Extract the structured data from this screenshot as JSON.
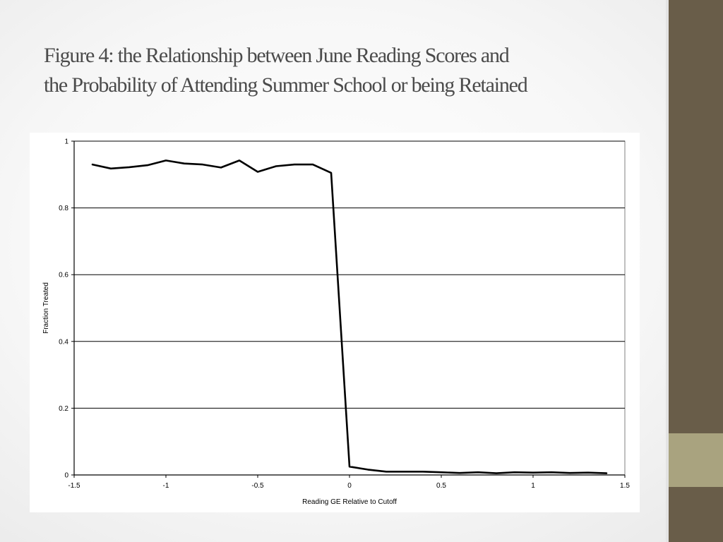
{
  "slide": {
    "title_line1": "Figure 4: the Relationship between June Reading Scores and",
    "title_line2": "the Probability of Attending Summer School or being Retained",
    "colors": {
      "side_band": "#695d49",
      "side_accent": "#a9a37f",
      "title_text": "#4b4b4b"
    }
  },
  "chart_data": {
    "type": "line",
    "title": "",
    "xlabel": "Reading GE Relative to Cutoff",
    "ylabel": "Fraction Treated",
    "xlim": [
      -1.5,
      1.5
    ],
    "ylim": [
      0,
      1
    ],
    "xticks": [
      -1.5,
      -1,
      -0.5,
      0,
      0.5,
      1,
      1.5
    ],
    "xtick_labels": [
      "-1.5",
      "-1",
      "-0.5",
      "0",
      "0.5",
      "1",
      "1.5"
    ],
    "yticks": [
      0,
      0.2,
      0.4,
      0.6,
      0.8,
      1
    ],
    "ytick_labels": [
      "0",
      "0.2",
      "0.4",
      "0.6",
      "0.8",
      "1"
    ],
    "grid": {
      "horizontal": true,
      "vertical": false
    },
    "legend": "none",
    "series": [
      {
        "color": "#000000",
        "x": [
          -1.4,
          -1.3,
          -1.2,
          -1.1,
          -1.0,
          -0.9,
          -0.8,
          -0.7,
          -0.6,
          -0.5,
          -0.4,
          -0.3,
          -0.2,
          -0.1,
          0.0,
          0.1,
          0.2,
          0.3,
          0.4,
          0.5,
          0.6,
          0.7,
          0.8,
          0.9,
          1.0,
          1.1,
          1.2,
          1.3,
          1.4
        ],
        "y": [
          0.93,
          0.918,
          0.922,
          0.928,
          0.942,
          0.933,
          0.93,
          0.921,
          0.942,
          0.908,
          0.925,
          0.93,
          0.93,
          0.905,
          0.025,
          0.016,
          0.01,
          0.01,
          0.01,
          0.008,
          0.006,
          0.008,
          0.005,
          0.008,
          0.007,
          0.008,
          0.006,
          0.007,
          0.005
        ]
      }
    ]
  }
}
